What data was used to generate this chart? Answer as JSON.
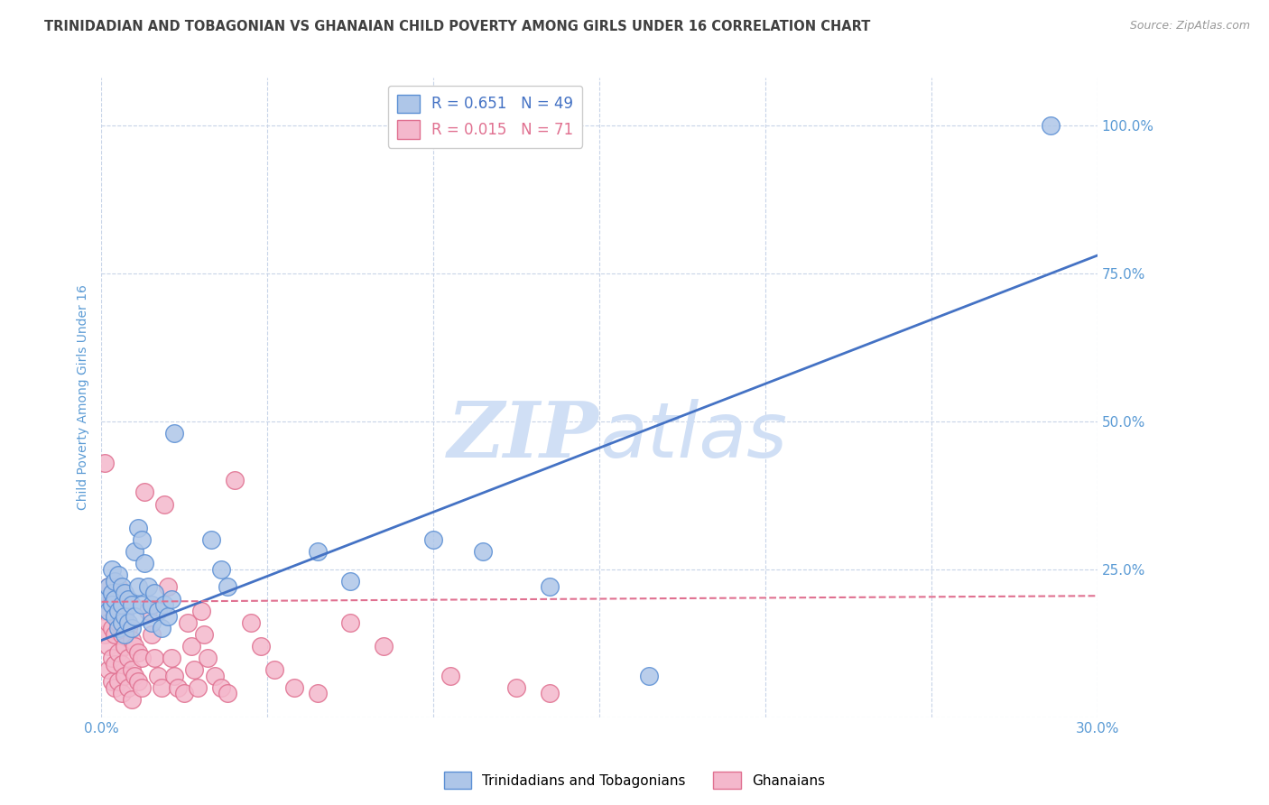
{
  "title": "TRINIDADIAN AND TOBAGONIAN VS GHANAIAN CHILD POVERTY AMONG GIRLS UNDER 16 CORRELATION CHART",
  "source": "Source: ZipAtlas.com",
  "ylabel": "Child Poverty Among Girls Under 16",
  "xlim": [
    0.0,
    0.3
  ],
  "ylim": [
    0.0,
    1.08
  ],
  "xticks": [
    0.0,
    0.05,
    0.1,
    0.15,
    0.2,
    0.25,
    0.3
  ],
  "xticklabels": [
    "0.0%",
    "",
    "",
    "",
    "",
    "",
    "30.0%"
  ],
  "yticks": [
    0.0,
    0.25,
    0.5,
    0.75,
    1.0
  ],
  "yticklabels": [
    "",
    "25.0%",
    "50.0%",
    "75.0%",
    "100.0%"
  ],
  "R_blue": 0.651,
  "N_blue": 49,
  "R_pink": 0.015,
  "N_pink": 71,
  "blue_color": "#aec6e8",
  "pink_color": "#f4b8cc",
  "blue_edge_color": "#5b8fd4",
  "pink_edge_color": "#e07090",
  "blue_line_color": "#4472c4",
  "pink_line_color": "#e07090",
  "title_color": "#404040",
  "axis_color": "#5b9bd5",
  "watermark_color": "#d0dff5",
  "grid_color": "#c8d4e8",
  "blue_scatter": [
    [
      0.001,
      0.2
    ],
    [
      0.002,
      0.22
    ],
    [
      0.002,
      0.18
    ],
    [
      0.003,
      0.25
    ],
    [
      0.003,
      0.21
    ],
    [
      0.003,
      0.19
    ],
    [
      0.004,
      0.23
    ],
    [
      0.004,
      0.17
    ],
    [
      0.004,
      0.2
    ],
    [
      0.005,
      0.24
    ],
    [
      0.005,
      0.18
    ],
    [
      0.005,
      0.15
    ],
    [
      0.006,
      0.22
    ],
    [
      0.006,
      0.19
    ],
    [
      0.006,
      0.16
    ],
    [
      0.007,
      0.21
    ],
    [
      0.007,
      0.17
    ],
    [
      0.007,
      0.14
    ],
    [
      0.008,
      0.2
    ],
    [
      0.008,
      0.16
    ],
    [
      0.009,
      0.19
    ],
    [
      0.009,
      0.15
    ],
    [
      0.01,
      0.28
    ],
    [
      0.01,
      0.17
    ],
    [
      0.011,
      0.32
    ],
    [
      0.011,
      0.22
    ],
    [
      0.012,
      0.3
    ],
    [
      0.012,
      0.19
    ],
    [
      0.013,
      0.26
    ],
    [
      0.014,
      0.22
    ],
    [
      0.015,
      0.19
    ],
    [
      0.015,
      0.16
    ],
    [
      0.016,
      0.21
    ],
    [
      0.017,
      0.18
    ],
    [
      0.018,
      0.15
    ],
    [
      0.019,
      0.19
    ],
    [
      0.02,
      0.17
    ],
    [
      0.021,
      0.2
    ],
    [
      0.022,
      0.48
    ],
    [
      0.033,
      0.3
    ],
    [
      0.036,
      0.25
    ],
    [
      0.038,
      0.22
    ],
    [
      0.065,
      0.28
    ],
    [
      0.075,
      0.23
    ],
    [
      0.1,
      0.3
    ],
    [
      0.115,
      0.28
    ],
    [
      0.135,
      0.22
    ],
    [
      0.165,
      0.07
    ],
    [
      0.286,
      1.0
    ]
  ],
  "pink_scatter": [
    [
      0.001,
      0.43
    ],
    [
      0.001,
      0.18
    ],
    [
      0.001,
      0.14
    ],
    [
      0.002,
      0.22
    ],
    [
      0.002,
      0.16
    ],
    [
      0.002,
      0.12
    ],
    [
      0.002,
      0.08
    ],
    [
      0.003,
      0.2
    ],
    [
      0.003,
      0.15
    ],
    [
      0.003,
      0.1
    ],
    [
      0.003,
      0.06
    ],
    [
      0.004,
      0.18
    ],
    [
      0.004,
      0.14
    ],
    [
      0.004,
      0.09
    ],
    [
      0.004,
      0.05
    ],
    [
      0.005,
      0.22
    ],
    [
      0.005,
      0.16
    ],
    [
      0.005,
      0.11
    ],
    [
      0.005,
      0.06
    ],
    [
      0.006,
      0.19
    ],
    [
      0.006,
      0.14
    ],
    [
      0.006,
      0.09
    ],
    [
      0.006,
      0.04
    ],
    [
      0.007,
      0.17
    ],
    [
      0.007,
      0.12
    ],
    [
      0.007,
      0.07
    ],
    [
      0.008,
      0.15
    ],
    [
      0.008,
      0.1
    ],
    [
      0.008,
      0.05
    ],
    [
      0.009,
      0.13
    ],
    [
      0.009,
      0.08
    ],
    [
      0.009,
      0.03
    ],
    [
      0.01,
      0.12
    ],
    [
      0.01,
      0.07
    ],
    [
      0.011,
      0.11
    ],
    [
      0.011,
      0.06
    ],
    [
      0.012,
      0.1
    ],
    [
      0.012,
      0.05
    ],
    [
      0.013,
      0.38
    ],
    [
      0.014,
      0.18
    ],
    [
      0.015,
      0.14
    ],
    [
      0.016,
      0.1
    ],
    [
      0.017,
      0.07
    ],
    [
      0.018,
      0.05
    ],
    [
      0.019,
      0.36
    ],
    [
      0.02,
      0.22
    ],
    [
      0.021,
      0.1
    ],
    [
      0.022,
      0.07
    ],
    [
      0.023,
      0.05
    ],
    [
      0.025,
      0.04
    ],
    [
      0.026,
      0.16
    ],
    [
      0.027,
      0.12
    ],
    [
      0.028,
      0.08
    ],
    [
      0.029,
      0.05
    ],
    [
      0.03,
      0.18
    ],
    [
      0.031,
      0.14
    ],
    [
      0.032,
      0.1
    ],
    [
      0.034,
      0.07
    ],
    [
      0.036,
      0.05
    ],
    [
      0.038,
      0.04
    ],
    [
      0.04,
      0.4
    ],
    [
      0.045,
      0.16
    ],
    [
      0.048,
      0.12
    ],
    [
      0.052,
      0.08
    ],
    [
      0.058,
      0.05
    ],
    [
      0.065,
      0.04
    ],
    [
      0.075,
      0.16
    ],
    [
      0.085,
      0.12
    ],
    [
      0.105,
      0.07
    ],
    [
      0.125,
      0.05
    ],
    [
      0.135,
      0.04
    ]
  ],
  "blue_trend_x": [
    0.0,
    0.3
  ],
  "blue_trend_y": [
    0.13,
    0.78
  ],
  "pink_trend_x": [
    0.0,
    0.3
  ],
  "pink_trend_y": [
    0.195,
    0.205
  ]
}
